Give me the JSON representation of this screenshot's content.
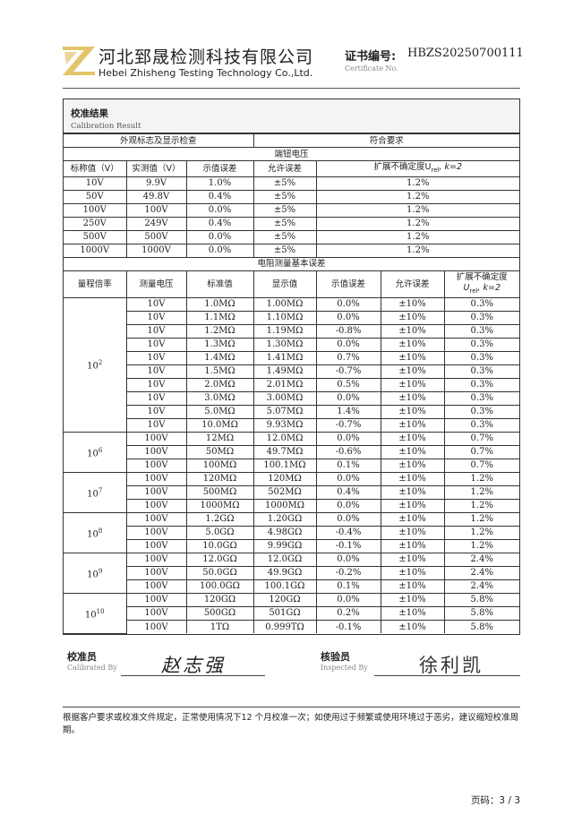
{
  "header": {
    "company_cn": "河北郅晟检测科技有限公司",
    "company_en": "Hebei Zhisheng Testing Technology Co.,Ltd.",
    "cert_label": "证书编号:",
    "cert_no": "HBZS20250700111",
    "cert_label_en": "Certificate No."
  },
  "section": {
    "title": "校准结果",
    "title_en": "Calibration Result"
  },
  "appearance": {
    "label": "外观标志及显示检查",
    "result": "符合要求"
  },
  "voltage": {
    "title": "端钮电压",
    "headers": [
      "标称值（V）",
      "实测值（V）",
      "示值误差",
      "允许误差",
      "扩展不确定度U",
      "rel",
      ", k=2"
    ],
    "rows": [
      [
        "10V",
        "9.9V",
        "1.0%",
        "±5%",
        "1.2%"
      ],
      [
        "50V",
        "49.8V",
        "0.4%",
        "±5%",
        "1.2%"
      ],
      [
        "100V",
        "100V",
        "0.0%",
        "±5%",
        "1.2%"
      ],
      [
        "250V",
        "249V",
        "0.4%",
        "±5%",
        "1.2%"
      ],
      [
        "500V",
        "500V",
        "0.0%",
        "±5%",
        "1.2%"
      ],
      [
        "1000V",
        "1000V",
        "0.0%",
        "±5%",
        "1.2%"
      ]
    ]
  },
  "resistance": {
    "title": "电阻测量基本误差",
    "headers": [
      "量程倍率",
      "测量电压",
      "标准值",
      "显示值",
      "示值误差",
      "允许误差",
      "扩展不确定度",
      "U",
      "rel",
      ", k=2"
    ],
    "groups": [
      {
        "base": "10",
        "exp": "2",
        "rows": [
          [
            "10V",
            "1.0MΩ",
            "1.00MΩ",
            "0.0%",
            "±10%",
            "0.3%"
          ],
          [
            "10V",
            "1.1MΩ",
            "1.10MΩ",
            "0.0%",
            "±10%",
            "0.3%"
          ],
          [
            "10V",
            "1.2MΩ",
            "1.19MΩ",
            "-0.8%",
            "±10%",
            "0.3%"
          ],
          [
            "10V",
            "1.3MΩ",
            "1.30MΩ",
            "0.0%",
            "±10%",
            "0.3%"
          ],
          [
            "10V",
            "1.4MΩ",
            "1.41MΩ",
            "0.7%",
            "±10%",
            "0.3%"
          ],
          [
            "10V",
            "1.5MΩ",
            "1.49MΩ",
            "-0.7%",
            "±10%",
            "0.3%"
          ],
          [
            "10V",
            "2.0MΩ",
            "2.01MΩ",
            "0.5%",
            "±10%",
            "0.3%"
          ],
          [
            "10V",
            "3.0MΩ",
            "3.00MΩ",
            "0.0%",
            "±10%",
            "0.3%"
          ],
          [
            "10V",
            "5.0MΩ",
            "5.07MΩ",
            "1.4%",
            "±10%",
            "0.3%"
          ],
          [
            "10V",
            "10.0MΩ",
            "9.93MΩ",
            "-0.7%",
            "±10%",
            "0.3%"
          ]
        ]
      },
      {
        "base": "10",
        "exp": "6",
        "rows": [
          [
            "100V",
            "12MΩ",
            "12.0MΩ",
            "0.0%",
            "±10%",
            "0.7%"
          ],
          [
            "100V",
            "50MΩ",
            "49.7MΩ",
            "-0.6%",
            "±10%",
            "0.7%"
          ],
          [
            "100V",
            "100MΩ",
            "100.1MΩ",
            "0.1%",
            "±10%",
            "0.7%"
          ]
        ]
      },
      {
        "base": "10",
        "exp": "7",
        "rows": [
          [
            "100V",
            "120MΩ",
            "120MΩ",
            "0.0%",
            "±10%",
            "1.2%"
          ],
          [
            "100V",
            "500MΩ",
            "502MΩ",
            "0.4%",
            "±10%",
            "1.2%"
          ],
          [
            "100V",
            "1000MΩ",
            "1000MΩ",
            "0.0%",
            "±10%",
            "1.2%"
          ]
        ]
      },
      {
        "base": "10",
        "exp": "8",
        "rows": [
          [
            "100V",
            "1.2GΩ",
            "1.20GΩ",
            "0.0%",
            "±10%",
            "1.2%"
          ],
          [
            "100V",
            "5.0GΩ",
            "4.98GΩ",
            "-0.4%",
            "±10%",
            "1.2%"
          ],
          [
            "100V",
            "10.0GΩ",
            "9.99GΩ",
            "-0.1%",
            "±10%",
            "1.2%"
          ]
        ]
      },
      {
        "base": "10",
        "exp": "9",
        "rows": [
          [
            "100V",
            "12.0GΩ",
            "12.0GΩ",
            "0.0%",
            "±10%",
            "2.4%"
          ],
          [
            "100V",
            "50.0GΩ",
            "49.9GΩ",
            "-0.2%",
            "±10%",
            "2.4%"
          ],
          [
            "100V",
            "100.0GΩ",
            "100.1GΩ",
            "0.1%",
            "±10%",
            "2.4%"
          ]
        ]
      },
      {
        "base": "10",
        "exp": "10",
        "rows": [
          [
            "100V",
            "120GΩ",
            "120GΩ",
            "0.0%",
            "±10%",
            "5.8%"
          ],
          [
            "100V",
            "500GΩ",
            "501GΩ",
            "0.2%",
            "±10%",
            "5.8%"
          ],
          [
            "100V",
            "1TΩ",
            "0.999TΩ",
            "-0.1%",
            "±10%",
            "5.8%"
          ]
        ]
      }
    ]
  },
  "signatures": {
    "calibrated_label": "校准员",
    "calibrated_label_en": "Calibrated By",
    "calibrated_name": "赵志强",
    "inspected_label": "核验员",
    "inspected_label_en": "Inspected By",
    "inspected_name": "徐利凯"
  },
  "note": "根据客户要求或校准文件规定，正常使用情况下12 个月校准一次；如使用过于频繁或使用环境过于恶劣，建议缩短校准周期。",
  "footer": {
    "page": "页码：3 / 3"
  },
  "colors": {
    "logo": "#e3c46a",
    "border": "#333333"
  }
}
